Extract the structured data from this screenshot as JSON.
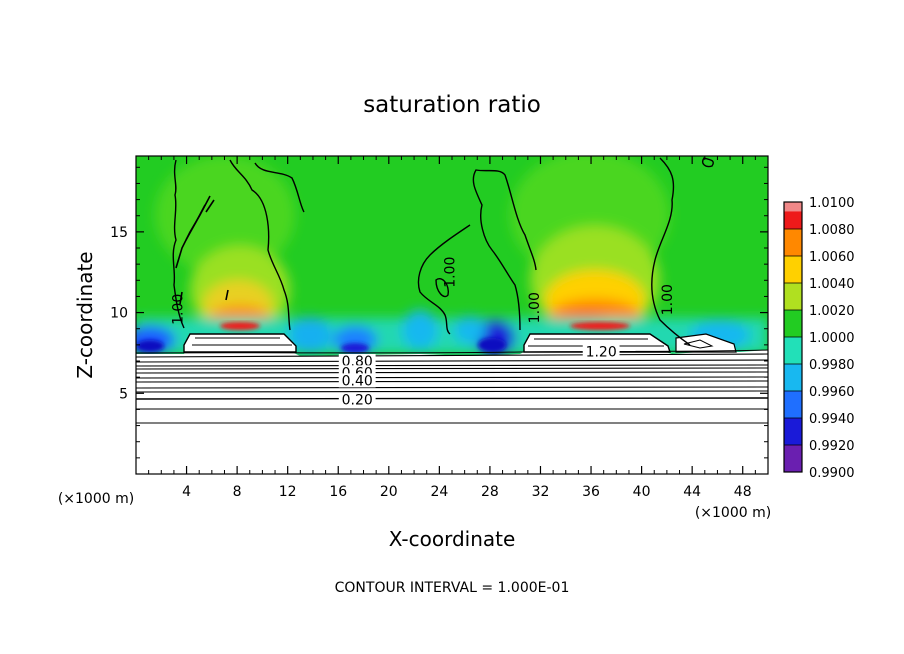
{
  "chart_data": {
    "type": "heatmap",
    "title": "saturation ratio",
    "xlabel": "X-coordinate",
    "ylabel": "Z-coordinate",
    "x_unit_label": "(×1000 m)",
    "x_unit_label_right": "(×1000 m)",
    "xlim": [
      0,
      50
    ],
    "ylim": [
      0,
      19.7
    ],
    "x_ticks": [
      4,
      8,
      12,
      16,
      20,
      24,
      28,
      32,
      36,
      40,
      44,
      48
    ],
    "x_tick_labels": [
      "4",
      "8",
      "12",
      "16",
      "20",
      "24",
      "28",
      "32",
      "36",
      "40",
      "44",
      "48"
    ],
    "y_ticks": [
      5,
      10,
      15
    ],
    "y_tick_labels": [
      "5",
      "10",
      "15"
    ],
    "colorbar": {
      "levels": [
        0.99,
        0.992,
        0.994,
        0.996,
        0.998,
        1.0,
        1.002,
        1.004,
        1.006,
        1.008,
        1.01
      ],
      "labels": [
        "0.9900",
        "0.9920",
        "0.9940",
        "0.9960",
        "0.9980",
        "1.0000",
        "1.0020",
        "1.0040",
        "1.0060",
        "1.0080",
        "1.0100"
      ],
      "colors": [
        "#6a1fb0",
        "#1a1ad8",
        "#1f6fff",
        "#18b8f0",
        "#22e0b8",
        "#22cc22",
        "#b0e020",
        "#ffd000",
        "#ff8800",
        "#ee1a1a",
        "#f08888"
      ]
    },
    "contour_labels": [
      {
        "text": "0.80",
        "x": 17.5,
        "z": 7.0
      },
      {
        "text": "0.60",
        "x": 17.5,
        "z": 6.3
      },
      {
        "text": "0.40",
        "x": 17.5,
        "z": 5.8
      },
      {
        "text": "0.20",
        "x": 17.5,
        "z": 4.6
      },
      {
        "text": "1.20",
        "x": 36.8,
        "z": 7.6
      },
      {
        "text": "1.00",
        "x": 3.3,
        "z": 10.2
      },
      {
        "text": "1.00",
        "x": 24.8,
        "z": 12.5
      },
      {
        "text": "1.00",
        "x": 31.5,
        "z": 10.3
      },
      {
        "text": "1.00",
        "x": 42.0,
        "z": 10.8
      }
    ],
    "contour_interval_label": "CONTOUR INTERVAL = 1.000E-01",
    "grid": false,
    "legend_position": "right"
  }
}
